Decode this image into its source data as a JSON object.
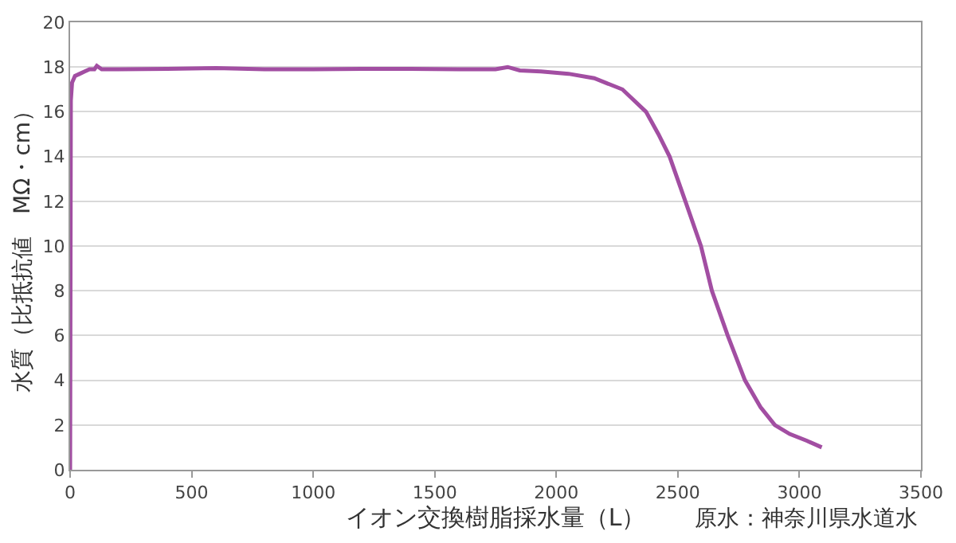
{
  "chart_data": {
    "type": "line",
    "xlabel": "イオン交換樹脂採水量（L）",
    "ylabel": "水質（比抵抗値　MΩ・cm）",
    "annotations": [
      "原水：神奈川県水道水"
    ],
    "x": [
      0,
      3,
      8,
      20,
      40,
      60,
      80,
      100,
      110,
      130,
      200,
      400,
      600,
      800,
      1000,
      1200,
      1400,
      1600,
      1750,
      1800,
      1850,
      1937,
      2050,
      2156,
      2272,
      2369,
      2420,
      2466,
      2531,
      2595,
      2640,
      2705,
      2776,
      2840,
      2899,
      2960,
      3030,
      3092
    ],
    "series": [
      {
        "color": "#a24ea2",
        "values": [
          0,
          16.5,
          17.3,
          17.6,
          17.7,
          17.8,
          17.9,
          17.9,
          18.05,
          17.9,
          17.9,
          17.92,
          17.95,
          17.9,
          17.9,
          17.92,
          17.92,
          17.9,
          17.9,
          18.0,
          17.85,
          17.8,
          17.7,
          17.5,
          17.0,
          16.0,
          15.0,
          14.0,
          12.0,
          10.0,
          8.0,
          6.0,
          4.0,
          2.8,
          2.0,
          1.6,
          1.3,
          1.0
        ]
      }
    ],
    "xlim": [
      0,
      3500
    ],
    "xticks": [
      0,
      500,
      1000,
      1500,
      2000,
      2500,
      3000,
      3500
    ],
    "ylim": [
      0,
      20
    ],
    "yticks": [
      0,
      2,
      4,
      6,
      8,
      10,
      12,
      14,
      16,
      18,
      20
    ],
    "grid": "y",
    "marker": "none",
    "line_style": "solid"
  }
}
